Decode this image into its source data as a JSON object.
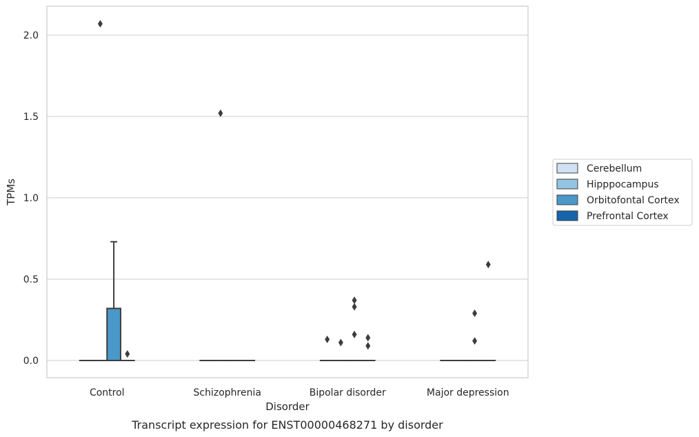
{
  "chart_data": {
    "type": "box",
    "caption": "Transcript expression for ENST00000468271 by disorder",
    "xlabel": "Disorder",
    "ylabel": "TPMs",
    "ylim": [
      -0.1,
      2.18
    ],
    "yticks": [
      0.0,
      0.5,
      1.0,
      1.5,
      2.0
    ],
    "ytick_labels": [
      "0.0",
      "0.5",
      "1.0",
      "1.5",
      "2.0"
    ],
    "grid": "horizontal",
    "legend_position": "right",
    "categories": [
      "Control",
      "Schizophrenia",
      "Bipolar disorder",
      "Major depression"
    ],
    "series": [
      {
        "name": "Cerebellum",
        "color": "#d0e1f2"
      },
      {
        "name": "Hipppocampus",
        "color": "#94c4df"
      },
      {
        "name": "Orbitofontal Cortex",
        "color": "#4a98c9"
      },
      {
        "name": "Prefrontal Cortex",
        "color": "#1764ab"
      }
    ],
    "boxes": [
      {
        "category": "Control",
        "series": "Cerebellum",
        "q1": 0,
        "median": 0,
        "q3": 0,
        "whisker_low": 0,
        "whisker_high": 0,
        "outliers": []
      },
      {
        "category": "Control",
        "series": "Hipppocampus",
        "q1": 0,
        "median": 0,
        "q3": 0,
        "whisker_low": 0,
        "whisker_high": 0,
        "outliers": [
          2.07
        ]
      },
      {
        "category": "Control",
        "series": "Orbitofontal Cortex",
        "q1": 0,
        "median": 0,
        "q3": 0.32,
        "whisker_low": 0,
        "whisker_high": 0.73,
        "outliers": []
      },
      {
        "category": "Control",
        "series": "Prefrontal Cortex",
        "q1": 0,
        "median": 0,
        "q3": 0,
        "whisker_low": 0,
        "whisker_high": 0,
        "outliers": [
          0.04
        ]
      },
      {
        "category": "Schizophrenia",
        "series": "Cerebellum",
        "q1": 0,
        "median": 0,
        "q3": 0,
        "whisker_low": 0,
        "whisker_high": 0,
        "outliers": []
      },
      {
        "category": "Schizophrenia",
        "series": "Hipppocampus",
        "q1": 0,
        "median": 0,
        "q3": 0,
        "whisker_low": 0,
        "whisker_high": 0,
        "outliers": [
          1.52
        ]
      },
      {
        "category": "Schizophrenia",
        "series": "Orbitofontal Cortex",
        "q1": 0,
        "median": 0,
        "q3": 0,
        "whisker_low": 0,
        "whisker_high": 0,
        "outliers": []
      },
      {
        "category": "Schizophrenia",
        "series": "Prefrontal Cortex",
        "q1": 0,
        "median": 0,
        "q3": 0,
        "whisker_low": 0,
        "whisker_high": 0,
        "outliers": []
      },
      {
        "category": "Bipolar disorder",
        "series": "Cerebellum",
        "q1": 0,
        "median": 0,
        "q3": 0,
        "whisker_low": 0,
        "whisker_high": 0,
        "outliers": [
          0.13
        ]
      },
      {
        "category": "Bipolar disorder",
        "series": "Hipppocampus",
        "q1": 0,
        "median": 0,
        "q3": 0,
        "whisker_low": 0,
        "whisker_high": 0,
        "outliers": [
          0.11
        ]
      },
      {
        "category": "Bipolar disorder",
        "series": "Orbitofontal Cortex",
        "q1": 0,
        "median": 0,
        "q3": 0,
        "whisker_low": 0,
        "whisker_high": 0,
        "outliers": [
          0.37,
          0.33,
          0.16
        ]
      },
      {
        "category": "Bipolar disorder",
        "series": "Prefrontal Cortex",
        "q1": 0,
        "median": 0,
        "q3": 0,
        "whisker_low": 0,
        "whisker_high": 0,
        "outliers": [
          0.14,
          0.09
        ]
      },
      {
        "category": "Major depression",
        "series": "Cerebellum",
        "q1": 0,
        "median": 0,
        "q3": 0,
        "whisker_low": 0,
        "whisker_high": 0,
        "outliers": []
      },
      {
        "category": "Major depression",
        "series": "Hipppocampus",
        "q1": 0,
        "median": 0,
        "q3": 0,
        "whisker_low": 0,
        "whisker_high": 0,
        "outliers": []
      },
      {
        "category": "Major depression",
        "series": "Orbitofontal Cortex",
        "q1": 0,
        "median": 0,
        "q3": 0,
        "whisker_low": 0,
        "whisker_high": 0,
        "outliers": [
          0.29,
          0.12
        ]
      },
      {
        "category": "Major depression",
        "series": "Prefrontal Cortex",
        "q1": 0,
        "median": 0,
        "q3": 0,
        "whisker_low": 0,
        "whisker_high": 0,
        "outliers": [
          0.59
        ]
      }
    ]
  }
}
